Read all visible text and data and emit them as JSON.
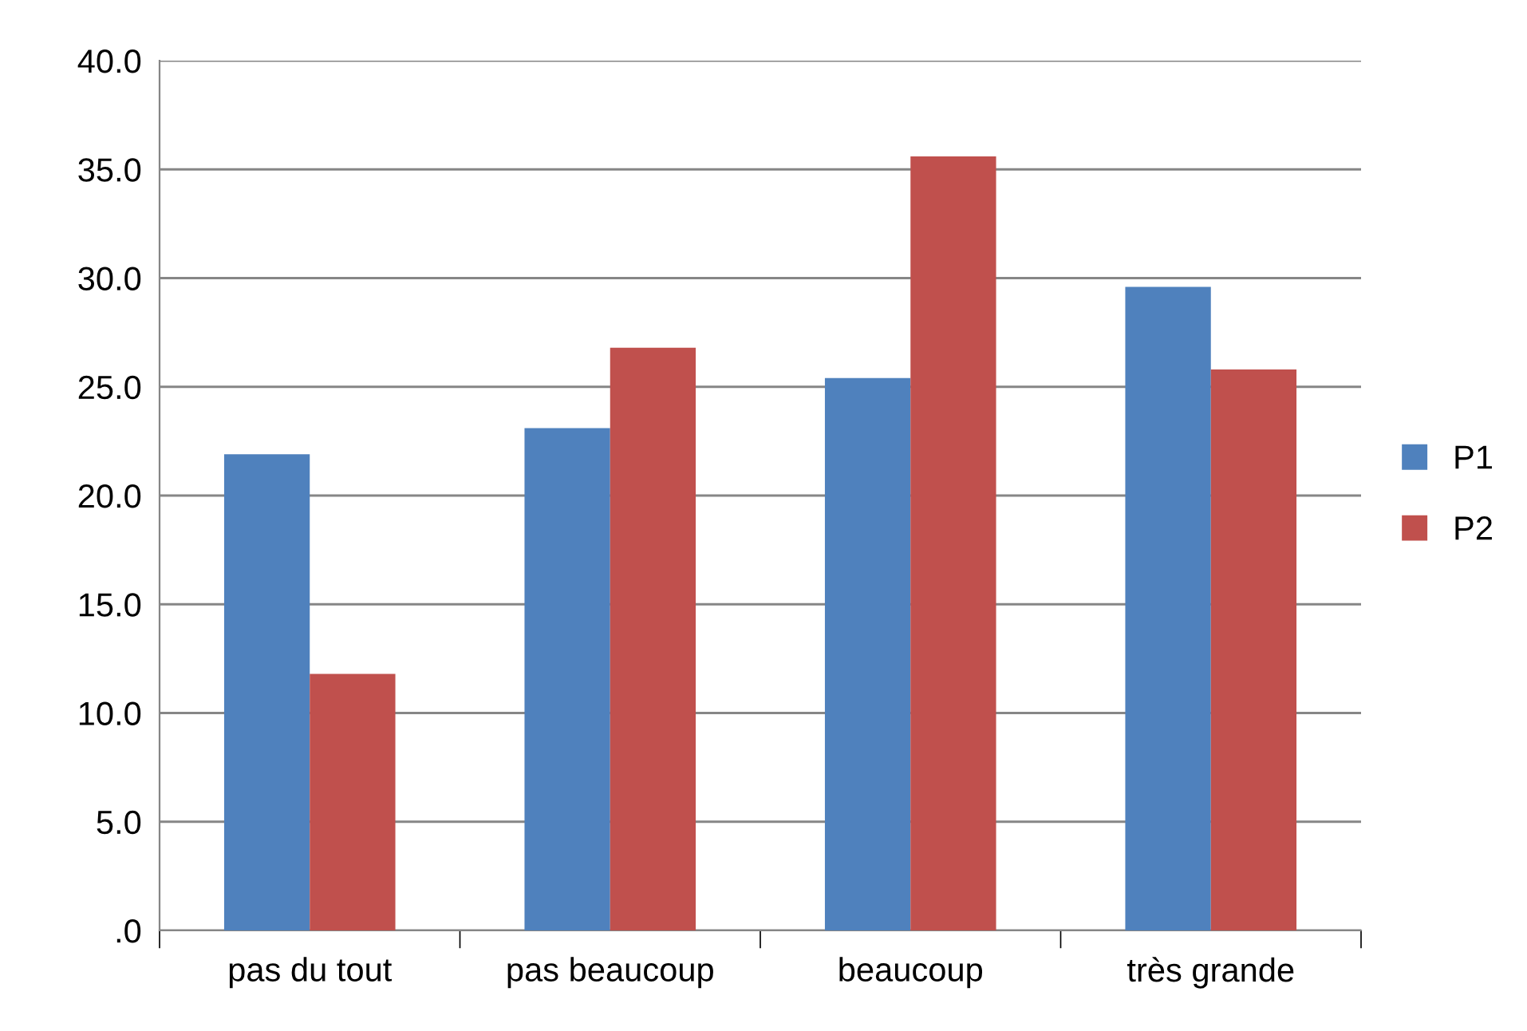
{
  "chart_data": {
    "type": "bar",
    "categories": [
      "pas du tout",
      "pas beaucoup",
      "beaucoup",
      "très grande"
    ],
    "series": [
      {
        "name": "P1",
        "color": "#4f81bd",
        "values": [
          21.9,
          23.1,
          25.4,
          29.6
        ]
      },
      {
        "name": "P2",
        "color": "#c0504d",
        "values": [
          11.8,
          26.8,
          35.6,
          25.8
        ]
      }
    ],
    "ylim": [
      0,
      40
    ],
    "yticks": [
      {
        "value": 0,
        "label": ".0"
      },
      {
        "value": 5,
        "label": "5.0"
      },
      {
        "value": 10,
        "label": "10.0"
      },
      {
        "value": 15,
        "label": "15.0"
      },
      {
        "value": 20,
        "label": "20.0"
      },
      {
        "value": 25,
        "label": "25.0"
      },
      {
        "value": 30,
        "label": "30.0"
      },
      {
        "value": 35,
        "label": "35.0"
      },
      {
        "value": 40,
        "label": "40.0"
      }
    ],
    "grid": "y",
    "legend": "right"
  }
}
